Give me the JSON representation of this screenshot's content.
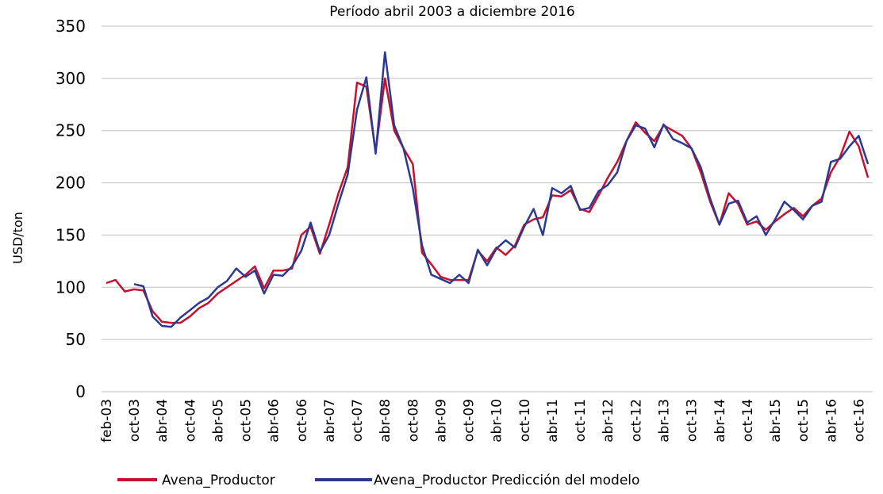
{
  "chart_data": {
    "type": "line",
    "title": "Período abril 2003 a diciembre 2016",
    "y_label": "USD/ton",
    "categories": [
      "feb-03",
      null,
      null,
      "oct-03",
      null,
      null,
      "abr-04",
      null,
      null,
      "oct-04",
      null,
      null,
      "abr-05",
      null,
      null,
      "oct-05",
      null,
      null,
      "abr-06",
      null,
      null,
      "oct-06",
      null,
      null,
      "abr-07",
      null,
      null,
      "oct-07",
      null,
      null,
      "abr-08",
      null,
      null,
      "oct-08",
      null,
      null,
      "abr-09",
      null,
      null,
      "oct-09",
      null,
      null,
      "abr-10",
      null,
      null,
      "oct-10",
      null,
      null,
      "abr-11",
      null,
      null,
      "oct-11",
      null,
      null,
      "abr-12",
      null,
      null,
      "oct-12",
      null,
      null,
      "abr-13",
      null,
      null,
      "oct-13",
      null,
      null,
      "abr-14",
      null,
      null,
      "oct-14",
      null,
      null,
      "abr-15",
      null,
      null,
      "oct-15",
      null,
      null,
      "abr-16",
      null,
      null,
      "oct-16",
      null
    ],
    "series": [
      {
        "name": "Avena_Productor",
        "color": "#c8102e",
        "values": [
          104,
          107,
          96,
          98,
          97,
          77,
          67,
          66,
          66,
          72,
          80,
          85,
          94,
          100,
          106,
          112,
          120,
          99,
          116,
          116,
          118,
          150,
          158,
          132,
          160,
          190,
          215,
          296,
          292,
          230,
          300,
          250,
          233,
          218,
          133,
          122,
          110,
          107,
          107,
          107,
          135,
          125,
          138,
          131,
          140,
          160,
          165,
          167,
          188,
          187,
          193,
          175,
          172,
          188,
          205,
          220,
          240,
          258,
          248,
          240,
          255,
          250,
          245,
          233,
          210,
          182,
          160,
          190,
          180,
          160,
          163,
          155,
          163,
          170,
          176,
          168,
          178,
          185,
          210,
          225,
          249,
          235,
          205
        ]
      },
      {
        "name": "Avena_Productor Predicción del modelo",
        "color": "#2b3990",
        "values": [
          null,
          null,
          null,
          103,
          101,
          72,
          63,
          62,
          71,
          78,
          85,
          90,
          100,
          106,
          118,
          110,
          116,
          94,
          112,
          111,
          120,
          135,
          162,
          134,
          150,
          180,
          208,
          270,
          301,
          228,
          325,
          255,
          233,
          195,
          140,
          112,
          108,
          104,
          112,
          104,
          136,
          121,
          137,
          145,
          138,
          158,
          175,
          150,
          195,
          190,
          197,
          174,
          176,
          192,
          198,
          210,
          240,
          255,
          252,
          234,
          256,
          242,
          238,
          233,
          215,
          185,
          160,
          180,
          183,
          162,
          168,
          150,
          165,
          182,
          174,
          165,
          178,
          182,
          220,
          223,
          235,
          245,
          218
        ]
      }
    ],
    "ylim": [
      0,
      350
    ],
    "yticks": [
      0,
      50,
      100,
      150,
      200,
      250,
      300,
      350
    ],
    "grid": true
  }
}
